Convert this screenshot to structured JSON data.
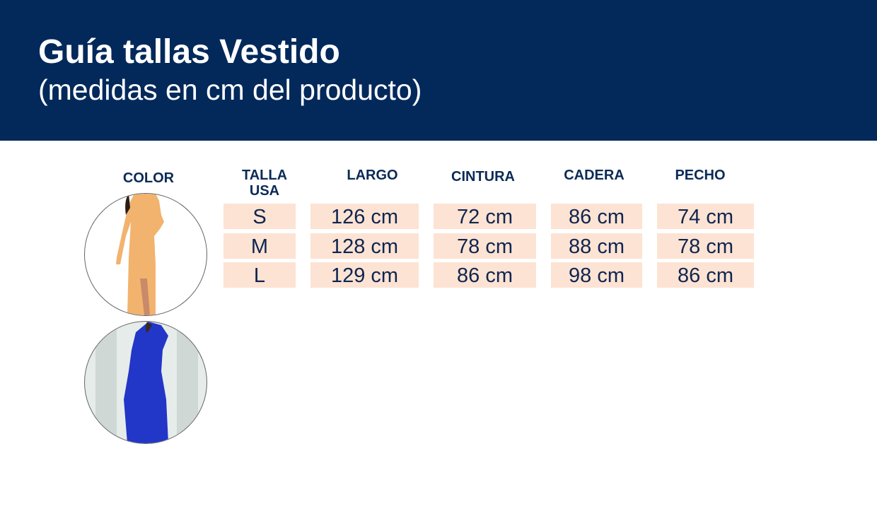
{
  "header": {
    "title": "Guía tallas Vestido",
    "subtitle": "(medidas en cm del producto)",
    "background": "#03295b"
  },
  "table": {
    "color_header": "COLOR",
    "columns": [
      "TALLA USA",
      "LARGO",
      "CINTURA",
      "CADERA",
      "PECHO"
    ],
    "talla_line1": "TALLA",
    "talla_line2": "USA",
    "rows": [
      {
        "talla": "S",
        "largo": "126 cm",
        "cintura": "72 cm",
        "cadera": "86 cm",
        "pecho": "74 cm"
      },
      {
        "talla": "M",
        "largo": "128 cm",
        "cintura": "78 cm",
        "cadera": "88 cm",
        "pecho": "78 cm"
      },
      {
        "talla": "L",
        "largo": "129 cm",
        "cintura": "86 cm",
        "cadera": "98 cm",
        "pecho": "86 cm"
      }
    ],
    "cell_color": "#fde3d3"
  },
  "colors": [
    {
      "swatch": "orange-dress",
      "hex": "#f2b36e"
    },
    {
      "swatch": "blue-dress",
      "hex": "#2236c8"
    }
  ]
}
